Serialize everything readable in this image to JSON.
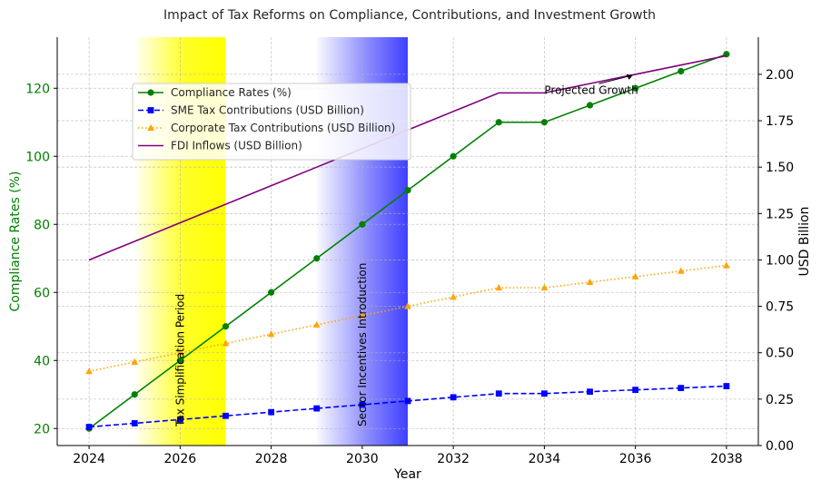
{
  "chart_data": {
    "type": "line",
    "title": "Impact of Tax Reforms on Compliance, Contributions, and Investment Growth",
    "xlabel": "Year",
    "ylabel_left": "Compliance Rates (%)",
    "ylabel_right": "USD Billion",
    "x": [
      2024,
      2025,
      2026,
      2027,
      2028,
      2029,
      2030,
      2031,
      2032,
      2033,
      2034,
      2035,
      2036,
      2037,
      2038
    ],
    "xlim": [
      2023.3,
      2038.7
    ],
    "x_ticks": [
      2024,
      2026,
      2028,
      2030,
      2032,
      2034,
      2036,
      2038
    ],
    "ylim_left": [
      15,
      135
    ],
    "y_ticks_left": [
      20,
      40,
      60,
      80,
      100,
      120
    ],
    "ylim_right": [
      0,
      2.2
    ],
    "y_ticks_right": [
      "0.00",
      "0.25",
      "0.50",
      "0.75",
      "1.00",
      "1.25",
      "1.50",
      "1.75",
      "2.00"
    ],
    "grid": true,
    "legend_position": "upper-left",
    "series": [
      {
        "name": "Compliance Rates (%)",
        "axis": "left",
        "color": "#008000",
        "line_style": "solid",
        "marker": "circle",
        "values": [
          20,
          30,
          40,
          50,
          60,
          70,
          80,
          90,
          100,
          110,
          110,
          115,
          120,
          125,
          130
        ]
      },
      {
        "name": "SME Tax Contributions (USD Billion)",
        "axis": "right",
        "color": "#0000ff",
        "line_style": "dashed",
        "marker": "square",
        "values": [
          0.1,
          0.12,
          0.14,
          0.16,
          0.18,
          0.2,
          0.22,
          0.24,
          0.26,
          0.28,
          0.28,
          0.29,
          0.3,
          0.31,
          0.32
        ]
      },
      {
        "name": "Corporate Tax Contributions (USD Billion)",
        "axis": "right",
        "color": "#ffa500",
        "line_style": "dotted",
        "marker": "triangle",
        "values": [
          0.4,
          0.45,
          0.5,
          0.55,
          0.6,
          0.65,
          0.7,
          0.75,
          0.8,
          0.85,
          0.85,
          0.88,
          0.91,
          0.94,
          0.97
        ]
      },
      {
        "name": "FDI Inflows (USD Billion)",
        "axis": "right",
        "color": "#800080",
        "line_style": "solid",
        "marker": "none",
        "values": [
          1.0,
          1.1,
          1.2,
          1.3,
          1.4,
          1.5,
          1.6,
          1.7,
          1.8,
          1.9,
          1.9,
          1.95,
          2.0,
          2.05,
          2.1
        ]
      }
    ],
    "shaded_regions": [
      {
        "label": "Tax Simplification Period",
        "x_start": 2025,
        "x_end": 2027,
        "color": "#ffff00"
      },
      {
        "label": "Sector Incentives Introduction",
        "x_start": 2029,
        "x_end": 2031,
        "color": "#0000ff"
      }
    ],
    "annotations": [
      {
        "text": "Projected Growth",
        "x": 2034,
        "y_right": 1.92,
        "arrow_to_x": 2036,
        "arrow_to_y_right": 1.995
      }
    ]
  }
}
